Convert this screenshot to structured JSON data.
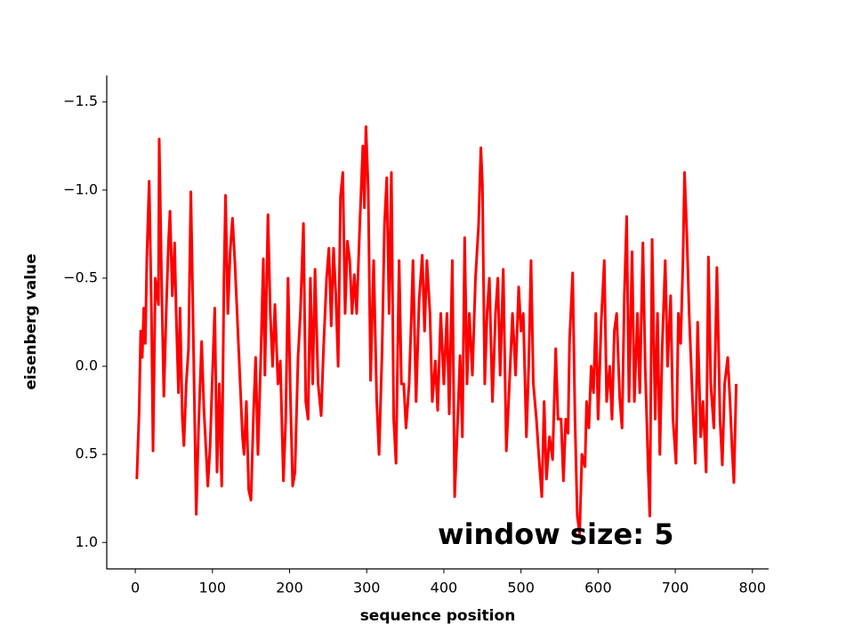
{
  "chart_data": {
    "type": "line",
    "xlabel": "sequence position",
    "ylabel": "eisenberg value",
    "annotation": "window size: 5",
    "y_inverted": true,
    "xlim": [
      -37,
      821
    ],
    "ylim": [
      -1.65,
      1.15
    ],
    "xticks": [
      0,
      100,
      200,
      300,
      400,
      500,
      600,
      700,
      800
    ],
    "yticks": [
      {
        "value": -1.5,
        "label": "−1.5"
      },
      {
        "value": -1.0,
        "label": "−1.0"
      },
      {
        "value": -0.5,
        "label": "−0.5"
      },
      {
        "value": 0,
        "label": "0.0"
      },
      0.5,
      {
        "value": 1.0,
        "label": "1.0"
      }
    ],
    "series": [
      {
        "color": "#ff0000",
        "x": [
          2,
          5,
          7,
          9,
          11,
          13,
          15,
          18,
          21,
          23,
          26,
          30,
          31,
          34,
          37,
          40,
          43,
          45,
          48,
          51,
          53,
          56,
          58,
          61,
          63,
          66,
          69,
          72,
          74,
          77,
          79,
          82,
          86,
          89,
          92,
          94,
          97,
          100,
          103,
          106,
          109,
          112,
          115,
          117,
          120,
          123,
          126,
          129,
          132,
          136,
          139,
          141,
          144,
          147,
          150,
          153,
          156,
          159,
          163,
          166,
          168,
          172,
          175,
          178,
          181,
          185,
          188,
          192,
          195,
          198,
          201,
          204,
          207,
          211,
          214,
          218,
          221,
          224,
          227,
          230,
          233,
          237,
          241,
          244,
          248,
          251,
          254,
          257,
          260,
          263,
          266,
          269,
          272,
          275,
          278,
          281,
          284,
          287,
          291,
          295,
          297,
          299,
          302,
          305,
          309,
          313,
          316,
          320,
          323,
          326,
          329,
          332,
          335,
          338,
          342,
          345,
          348,
          351,
          355,
          358,
          360,
          364,
          368,
          372,
          375,
          378,
          382,
          385,
          389,
          392,
          396,
          400,
          404,
          407,
          411,
          414,
          418,
          421,
          424,
          427,
          430,
          433,
          437,
          441,
          445,
          448,
          450,
          453,
          456,
          459,
          463,
          467,
          470,
          473,
          477,
          481,
          485,
          489,
          493,
          497,
          500,
          503,
          507,
          510,
          513,
          516,
          520,
          523,
          527,
          530,
          533,
          537,
          541,
          545,
          548,
          552,
          555,
          558,
          561,
          563,
          567,
          570,
          573,
          576,
          579,
          583,
          585,
          588,
          591,
          594,
          597,
          600,
          604,
          608,
          611,
          615,
          618,
          621,
          624,
          628,
          631,
          634,
          637,
          640,
          644,
          647,
          651,
          654,
          658,
          661,
          665,
          667,
          670,
          674,
          677,
          680,
          683,
          687,
          690,
          694,
          697,
          701,
          704,
          707,
          710,
          712,
          715,
          718,
          722,
          726,
          729,
          733,
          736,
          740,
          743,
          746,
          750,
          754,
          758,
          761,
          764,
          768,
          771,
          774,
          776,
          779
        ],
        "values": [
          0.64,
          0.25,
          -0.2,
          -0.05,
          -0.33,
          -0.13,
          -0.62,
          -1.05,
          -0.3,
          0.48,
          -0.5,
          -0.35,
          -1.29,
          -0.5,
          0.17,
          -0.3,
          -0.7,
          -0.88,
          -0.4,
          -0.7,
          -0.3,
          0.15,
          -0.33,
          0.3,
          0.45,
          0.1,
          -0.1,
          -0.99,
          -0.5,
          0.3,
          0.84,
          0.35,
          -0.14,
          0.25,
          0.5,
          0.68,
          0.45,
          0.05,
          -0.33,
          0.6,
          0.1,
          0.68,
          -0.5,
          -0.97,
          -0.3,
          -0.65,
          -0.84,
          -0.6,
          -0.3,
          0.1,
          0.4,
          0.5,
          0.2,
          0.7,
          0.76,
          0.3,
          -0.05,
          0.5,
          -0.1,
          -0.61,
          0.05,
          -0.86,
          -0.3,
          0.0,
          -0.35,
          0.1,
          -0.03,
          0.65,
          0.3,
          -0.5,
          0.15,
          0.68,
          0.6,
          -0.05,
          -0.3,
          -0.81,
          0.2,
          0.3,
          -0.5,
          0.1,
          -0.55,
          0.1,
          0.28,
          -0.1,
          -0.5,
          -0.67,
          -0.23,
          -0.67,
          -0.4,
          0.0,
          -0.96,
          -1.1,
          -0.3,
          -0.71,
          -0.6,
          -0.3,
          -0.52,
          -0.3,
          -0.8,
          -1.25,
          -0.9,
          -1.36,
          -1.0,
          0.08,
          -0.6,
          0.2,
          0.5,
          -0.1,
          -0.8,
          -1.07,
          -0.3,
          -1.1,
          0.3,
          0.55,
          -0.6,
          0.1,
          0.1,
          0.35,
          0.1,
          -0.3,
          -0.6,
          0.2,
          -0.38,
          -0.63,
          -0.2,
          -0.6,
          -0.3,
          0.2,
          -0.03,
          0.25,
          -0.3,
          0.1,
          -0.3,
          0.27,
          -0.6,
          0.74,
          0.3,
          -0.06,
          0.4,
          -0.73,
          0.1,
          -0.3,
          0.05,
          -0.5,
          -0.8,
          -1.24,
          -1.03,
          0.1,
          -0.3,
          -0.5,
          0.2,
          -0.3,
          -0.5,
          0.05,
          -0.55,
          0.48,
          0.1,
          -0.3,
          0.05,
          -0.45,
          -0.2,
          -0.3,
          0.4,
          0.0,
          -0.6,
          0.1,
          0.3,
          0.5,
          0.74,
          0.2,
          0.64,
          0.4,
          0.53,
          -0.1,
          0.3,
          0.3,
          0.65,
          0.3,
          0.38,
          -0.15,
          -0.53,
          0.3,
          0.85,
          0.95,
          0.5,
          0.57,
          0.2,
          0.35,
          0.0,
          0.15,
          -0.3,
          0.3,
          -0.25,
          -0.6,
          0.2,
          0.0,
          0.3,
          -0.2,
          -0.3,
          0.18,
          0.35,
          -0.4,
          -0.85,
          0.2,
          -0.65,
          0.2,
          -0.3,
          0.15,
          -0.7,
          0.0,
          0.6,
          0.85,
          -0.72,
          0.3,
          -0.3,
          0.5,
          -0.1,
          -0.6,
          0.0,
          -0.4,
          0.3,
          0.55,
          -0.3,
          -0.13,
          -0.6,
          -1.1,
          -0.75,
          -0.3,
          0.15,
          0.55,
          -0.25,
          0.4,
          0.2,
          0.6,
          -0.62,
          0.1,
          0.35,
          -0.56,
          0.3,
          0.56,
          0.1,
          -0.05,
          0.2,
          0.5,
          0.66,
          0.1
        ]
      }
    ]
  }
}
